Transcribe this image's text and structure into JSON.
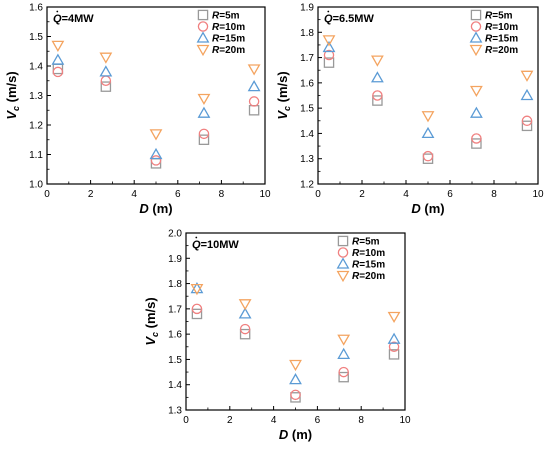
{
  "chart_data": [
    {
      "type": "scatter",
      "annotation": "Q̇=4MW",
      "xlabel": "D (m)",
      "ylabel": "Vc (m/s)",
      "xlim": [
        0,
        10
      ],
      "ylim": [
        1.0,
        1.6
      ],
      "xticks": [
        "0",
        "2",
        "4",
        "6",
        "8",
        "10"
      ],
      "yticks": [
        "1.0",
        "1.1",
        "1.2",
        "1.3",
        "1.4",
        "1.5",
        "1.6"
      ],
      "legend_position": "top-right",
      "series": [
        {
          "name": "R=5m",
          "marker": "square",
          "color": "#999999",
          "x": [
            0.5,
            2.7,
            5.0,
            7.2,
            9.5
          ],
          "y": [
            1.39,
            1.33,
            1.07,
            1.15,
            1.25
          ]
        },
        {
          "name": "R=10m",
          "marker": "circle",
          "color": "#f08080",
          "x": [
            0.5,
            2.7,
            5.0,
            7.2,
            9.5
          ],
          "y": [
            1.38,
            1.35,
            1.08,
            1.17,
            1.28
          ]
        },
        {
          "name": "R=15m",
          "marker": "triangle-up",
          "color": "#5b9bd5",
          "x": [
            0.5,
            2.7,
            5.0,
            7.2,
            9.5
          ],
          "y": [
            1.42,
            1.38,
            1.1,
            1.24,
            1.33
          ]
        },
        {
          "name": "R=20m",
          "marker": "triangle-down",
          "color": "#f4a460",
          "x": [
            0.5,
            2.7,
            5.0,
            7.2,
            9.5
          ],
          "y": [
            1.47,
            1.43,
            1.17,
            1.29,
            1.39
          ]
        }
      ]
    },
    {
      "type": "scatter",
      "annotation": "Q̇=6.5MW",
      "xlabel": "D (m)",
      "ylabel": "Vc (m/s)",
      "xlim": [
        0,
        10
      ],
      "ylim": [
        1.2,
        1.9
      ],
      "xticks": [
        "0",
        "2",
        "4",
        "6",
        "8",
        "10"
      ],
      "yticks": [
        "1.2",
        "1.3",
        "1.4",
        "1.5",
        "1.6",
        "1.7",
        "1.8",
        "1.9"
      ],
      "legend_position": "top-right",
      "series": [
        {
          "name": "R=5m",
          "marker": "square",
          "color": "#999999",
          "x": [
            0.5,
            2.7,
            5.0,
            7.2,
            9.5
          ],
          "y": [
            1.68,
            1.53,
            1.3,
            1.36,
            1.43
          ]
        },
        {
          "name": "R=10m",
          "marker": "circle",
          "color": "#f08080",
          "x": [
            0.5,
            2.7,
            5.0,
            7.2,
            9.5
          ],
          "y": [
            1.71,
            1.55,
            1.31,
            1.38,
            1.45
          ]
        },
        {
          "name": "R=15m",
          "marker": "triangle-up",
          "color": "#5b9bd5",
          "x": [
            0.5,
            2.7,
            5.0,
            7.2,
            9.5
          ],
          "y": [
            1.74,
            1.62,
            1.4,
            1.48,
            1.55
          ]
        },
        {
          "name": "R=20m",
          "marker": "triangle-down",
          "color": "#f4a460",
          "x": [
            0.5,
            2.7,
            5.0,
            7.2,
            9.5
          ],
          "y": [
            1.77,
            1.69,
            1.47,
            1.57,
            1.63
          ]
        }
      ]
    },
    {
      "type": "scatter",
      "annotation": "Q̇=10MW",
      "xlabel": "D (m)",
      "ylabel": "Vc (m/s)",
      "xlim": [
        0,
        10
      ],
      "ylim": [
        1.3,
        2.0
      ],
      "xticks": [
        "0",
        "2",
        "4",
        "6",
        "8",
        "10"
      ],
      "yticks": [
        "1.3",
        "1.4",
        "1.5",
        "1.6",
        "1.7",
        "1.8",
        "1.9",
        "2.0"
      ],
      "legend_position": "top-right",
      "series": [
        {
          "name": "R=5m",
          "marker": "square",
          "color": "#999999",
          "x": [
            0.5,
            2.7,
            5.0,
            7.2,
            9.5
          ],
          "y": [
            1.68,
            1.6,
            1.35,
            1.43,
            1.52
          ]
        },
        {
          "name": "R=10m",
          "marker": "circle",
          "color": "#f08080",
          "x": [
            0.5,
            2.7,
            5.0,
            7.2,
            9.5
          ],
          "y": [
            1.7,
            1.62,
            1.36,
            1.45,
            1.55
          ]
        },
        {
          "name": "R=15m",
          "marker": "triangle-up",
          "color": "#5b9bd5",
          "x": [
            0.5,
            2.7,
            5.0,
            7.2,
            9.5
          ],
          "y": [
            1.78,
            1.68,
            1.42,
            1.52,
            1.58
          ]
        },
        {
          "name": "R=20m",
          "marker": "triangle-down",
          "color": "#f4a460",
          "x": [
            0.5,
            2.7,
            5.0,
            7.2,
            9.5
          ],
          "y": [
            1.78,
            1.72,
            1.48,
            1.58,
            1.67
          ]
        }
      ]
    }
  ]
}
